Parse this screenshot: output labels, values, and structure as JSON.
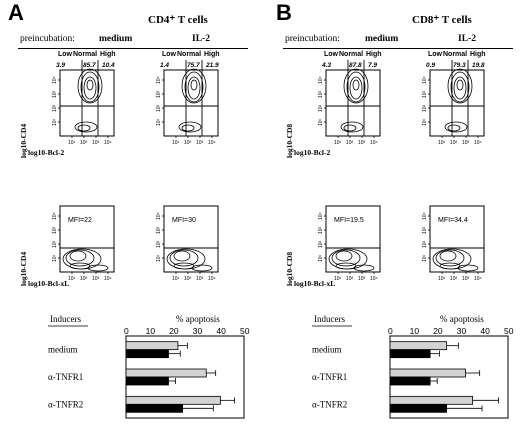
{
  "panels": [
    {
      "letter": "A",
      "title": "CD4⁺ T cells",
      "preincubation_label": "preincubation:",
      "conditions": [
        "medium",
        "IL-2"
      ],
      "gate_labels": [
        "Low",
        "Normal",
        "High"
      ],
      "bcl2": {
        "ylabel": "log10-CD4",
        "xlabel": "log10-Bcl-2",
        "percents": [
          [
            "3.9",
            "85.7",
            "10.4"
          ],
          [
            "1.4",
            "75.7",
            "21.9"
          ]
        ]
      },
      "bclxl": {
        "ylabel": "log10-CD4",
        "xlabel": "log10-Bcl-xL",
        "mfi": [
          "MFI=22",
          "MFI=30"
        ]
      },
      "chart": {
        "inducers_label": "Inducers",
        "metric_label": "% apoptosis",
        "categories": [
          "medium",
          "α-TNFR1",
          "α-TNFR2"
        ]
      }
    },
    {
      "letter": "B",
      "title": "CD8⁺ T cells",
      "preincubation_label": "preincubation:",
      "conditions": [
        "medium",
        "IL-2"
      ],
      "gate_labels": [
        "Low",
        "Normal",
        "High"
      ],
      "bcl2": {
        "ylabel": "log10-CD8",
        "xlabel": "log10-Bcl-2",
        "percents": [
          [
            "4.3",
            "87.8",
            "7.9"
          ],
          [
            "0.9",
            "79.3",
            "19.8"
          ]
        ]
      },
      "bclxl": {
        "ylabel": "log10-CD8",
        "xlabel": "log10-Bcl-xL",
        "mfi": [
          "MFI=19.5",
          "MFI=34.4"
        ]
      },
      "chart": {
        "inducers_label": "Inducers",
        "metric_label": "% apoptosis",
        "categories": [
          "medium",
          "α-TNFR1",
          "α-TNFR2"
        ]
      }
    }
  ],
  "log_ticks": [
    "10¹",
    "10²",
    "10³",
    "10⁴"
  ],
  "chart_data": [
    {
      "type": "bar",
      "orientation": "horizontal",
      "categories": [
        "medium",
        "α-TNFR1",
        "α-TNFR2"
      ],
      "xlabel": "% apoptosis",
      "ylabel": "Inducers",
      "xlim": [
        0,
        50
      ],
      "xticks": [
        0,
        10,
        20,
        30,
        40,
        50
      ],
      "colors": {
        "gray": "#d3d3d3",
        "black": "#000000"
      },
      "series": [
        {
          "color": "gray",
          "values": [
            22,
            34,
            40
          ],
          "errors": [
            4,
            4,
            6
          ]
        },
        {
          "color": "black",
          "values": [
            18,
            18,
            24
          ],
          "errors": [
            5,
            3,
            13
          ]
        }
      ]
    },
    {
      "type": "bar",
      "orientation": "horizontal",
      "categories": [
        "medium",
        "α-TNFR1",
        "α-TNFR2"
      ],
      "xlabel": "% apoptosis",
      "ylabel": "Inducers",
      "xlim": [
        0,
        50
      ],
      "xticks": [
        0,
        10,
        20,
        30,
        40,
        50
      ],
      "colors": {
        "gray": "#d3d3d3",
        "black": "#000000"
      },
      "series": [
        {
          "color": "gray",
          "values": [
            24,
            32,
            35
          ],
          "errors": [
            5,
            6,
            11
          ]
        },
        {
          "color": "black",
          "values": [
            17,
            17,
            24
          ],
          "errors": [
            4,
            3,
            15
          ]
        }
      ]
    }
  ]
}
